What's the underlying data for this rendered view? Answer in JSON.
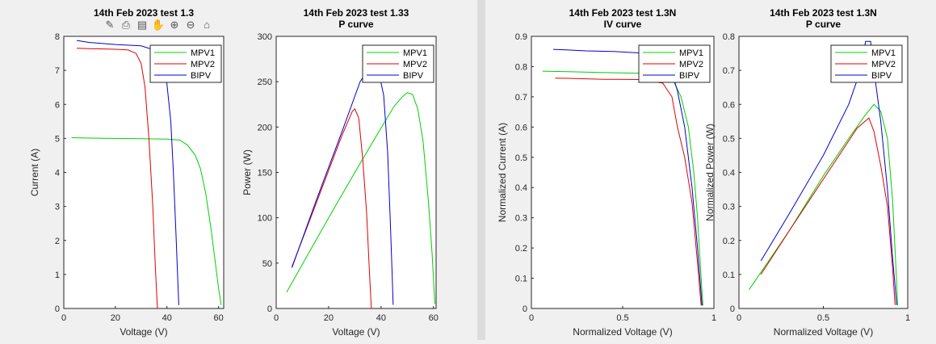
{
  "colors": {
    "MPV1": "#00d000",
    "MPV2": "#e00000",
    "BIPV": "#0000d0"
  },
  "toolbar_icons": [
    "brush-icon",
    "print-icon",
    "data-tips-icon",
    "pan-hand-icon",
    "zoom-in-icon",
    "zoom-out-icon",
    "home-icon"
  ],
  "chart_data": [
    {
      "type": "line",
      "title": [
        "14th Feb 2023 test 1.3"
      ],
      "xlabel": "Voltage (V)",
      "ylabel": "Current (A)",
      "xlim": [
        0,
        62
      ],
      "ylim": [
        0,
        8
      ],
      "xticks": [
        0,
        20,
        40,
        60
      ],
      "xticklabels": [
        "0",
        "20",
        "40",
        "60"
      ],
      "yticks": [
        0,
        1,
        2,
        3,
        4,
        5,
        6,
        7,
        8
      ],
      "yticklabels": [
        "0",
        "1",
        "2",
        "3",
        "4",
        "5",
        "6",
        "7",
        "8"
      ],
      "legend": {
        "position": "top-right",
        "entries": [
          "MPV1",
          "MPV2",
          "BIPV"
        ]
      },
      "grid": false,
      "series": [
        {
          "name": "MPV1",
          "x": [
            3,
            10,
            20,
            30,
            40,
            45,
            48,
            51,
            53,
            55,
            57,
            58.5,
            60,
            61
          ],
          "y": [
            5.02,
            5.01,
            5.0,
            4.99,
            4.98,
            4.95,
            4.8,
            4.5,
            4.1,
            3.4,
            2.4,
            1.5,
            0.6,
            0.1
          ]
        },
        {
          "name": "MPV2",
          "x": [
            5,
            10,
            20,
            25,
            28,
            30,
            31.5,
            33,
            34.5,
            35.5,
            36.3
          ],
          "y": [
            7.65,
            7.64,
            7.62,
            7.6,
            7.5,
            7.2,
            6.5,
            5.0,
            3.0,
            1.2,
            0
          ]
        },
        {
          "name": "BIPV",
          "x": [
            5,
            10,
            20,
            30,
            35,
            38,
            40,
            41.5,
            42.5,
            43.5,
            44.2,
            44.6
          ],
          "y": [
            7.88,
            7.82,
            7.76,
            7.72,
            7.6,
            7.3,
            6.6,
            5.5,
            4.0,
            2.2,
            0.8,
            0.1
          ]
        }
      ]
    },
    {
      "type": "line",
      "title": [
        "14th Feb 2023 test 1.33",
        "P curve"
      ],
      "xlabel": "Voltage (V)",
      "ylabel": "Power (W)",
      "xlim": [
        0,
        61
      ],
      "ylim": [
        0,
        300
      ],
      "xticks": [
        0,
        20,
        40,
        60
      ],
      "xticklabels": [
        "0",
        "20",
        "40",
        "60"
      ],
      "yticks": [
        0,
        50,
        100,
        150,
        200,
        250,
        300
      ],
      "yticklabels": [
        "0",
        "50",
        "100",
        "150",
        "200",
        "250",
        "300"
      ],
      "legend": {
        "position": "top-right",
        "entries": [
          "MPV1",
          "MPV2",
          "BIPV"
        ]
      },
      "grid": false,
      "series": [
        {
          "name": "MPV1",
          "x": [
            4,
            20,
            30,
            40,
            45,
            48,
            50,
            52,
            54,
            56,
            58,
            59.5,
            60.5
          ],
          "y": [
            18,
            100,
            150,
            199,
            223,
            233,
            238,
            236,
            220,
            185,
            120,
            60,
            5
          ]
        },
        {
          "name": "MPV2",
          "x": [
            6,
            15,
            25,
            29,
            30,
            31.5,
            33,
            34.5,
            35.5,
            36.3
          ],
          "y": [
            46,
            114,
            190,
            217,
            220,
            210,
            165,
            105,
            45,
            0
          ]
        },
        {
          "name": "BIPV",
          "x": [
            6,
            15,
            25,
            32,
            36,
            39,
            41,
            42.5,
            43.5,
            44.2,
            44.6
          ],
          "y": [
            45,
            117,
            194,
            250,
            268,
            262,
            235,
            172,
            98,
            40,
            4
          ]
        }
      ]
    },
    {
      "type": "line",
      "title": [
        "14th Feb 2023 test 1.3N",
        "IV curve"
      ],
      "xlabel": "Normalized Voltage (V)",
      "ylabel": "Normalized Current (A)",
      "xlim": [
        0,
        1
      ],
      "ylim": [
        0,
        0.9
      ],
      "xticks": [
        0,
        0.5,
        1
      ],
      "xticklabels": [
        "0",
        "0.5",
        "1"
      ],
      "yticks": [
        0,
        0.1,
        0.2,
        0.3,
        0.4,
        0.5,
        0.6,
        0.7,
        0.8,
        0.9
      ],
      "yticklabels": [
        "0",
        "0.1",
        "0.2",
        "0.3",
        "0.4",
        "0.5",
        "0.6",
        "0.7",
        "0.8",
        "0.9"
      ],
      "legend": {
        "position": "top-right",
        "entries": [
          "MPV1",
          "MPV2",
          "BIPV"
        ]
      },
      "grid": false,
      "series": [
        {
          "name": "MPV1",
          "x": [
            0.06,
            0.2,
            0.4,
            0.6,
            0.7,
            0.78,
            0.82,
            0.86,
            0.89,
            0.91,
            0.93,
            0.94
          ],
          "y": [
            0.785,
            0.783,
            0.78,
            0.778,
            0.775,
            0.75,
            0.7,
            0.6,
            0.45,
            0.3,
            0.1,
            0.01
          ]
        },
        {
          "name": "MPV2",
          "x": [
            0.13,
            0.2,
            0.4,
            0.6,
            0.72,
            0.77,
            0.8,
            0.84,
            0.88,
            0.91,
            0.93
          ],
          "y": [
            0.762,
            0.761,
            0.758,
            0.757,
            0.745,
            0.7,
            0.6,
            0.5,
            0.35,
            0.15,
            0.01
          ]
        },
        {
          "name": "BIPV",
          "x": [
            0.12,
            0.2,
            0.3,
            0.45,
            0.6,
            0.7,
            0.76,
            0.8,
            0.84,
            0.88,
            0.91,
            0.935
          ],
          "y": [
            0.857,
            0.855,
            0.852,
            0.85,
            0.845,
            0.84,
            0.8,
            0.72,
            0.6,
            0.4,
            0.2,
            0.01
          ]
        }
      ]
    },
    {
      "type": "line",
      "title": [
        "14th Feb 2023 test 1.3N",
        "P curve"
      ],
      "xlabel": "Normalized Voltage (V)",
      "ylabel": "Normalized Power (W)",
      "xlim": [
        0,
        1
      ],
      "ylim": [
        0,
        0.8
      ],
      "xticks": [
        0,
        0.5,
        1
      ],
      "xticklabels": [
        "0",
        "0.5",
        "1"
      ],
      "yticks": [
        0,
        0.1,
        0.2,
        0.3,
        0.4,
        0.5,
        0.6,
        0.7,
        0.8
      ],
      "yticklabels": [
        "0",
        "0.1",
        "0.2",
        "0.3",
        "0.4",
        "0.5",
        "0.6",
        "0.7",
        "0.8"
      ],
      "legend": {
        "position": "top-right",
        "entries": [
          "MPV1",
          "MPV2",
          "BIPV"
        ]
      },
      "grid": false,
      "series": [
        {
          "name": "MPV1",
          "x": [
            0.06,
            0.3,
            0.5,
            0.65,
            0.75,
            0.8,
            0.84,
            0.88,
            0.91,
            0.93,
            0.94
          ],
          "y": [
            0.055,
            0.23,
            0.39,
            0.5,
            0.57,
            0.6,
            0.58,
            0.5,
            0.32,
            0.12,
            0.01
          ]
        },
        {
          "name": "MPV2",
          "x": [
            0.13,
            0.3,
            0.5,
            0.7,
            0.77,
            0.8,
            0.84,
            0.88,
            0.91,
            0.925
          ],
          "y": [
            0.1,
            0.23,
            0.38,
            0.53,
            0.56,
            0.52,
            0.42,
            0.3,
            0.12,
            0.01
          ]
        },
        {
          "name": "BIPV",
          "x": [
            0.13,
            0.3,
            0.5,
            0.65,
            0.72,
            0.75,
            0.78,
            0.8,
            0.84,
            0.88,
            0.91,
            0.935
          ],
          "y": [
            0.14,
            0.28,
            0.45,
            0.6,
            0.7,
            0.785,
            0.785,
            0.7,
            0.55,
            0.35,
            0.15,
            0.01
          ]
        }
      ]
    }
  ]
}
